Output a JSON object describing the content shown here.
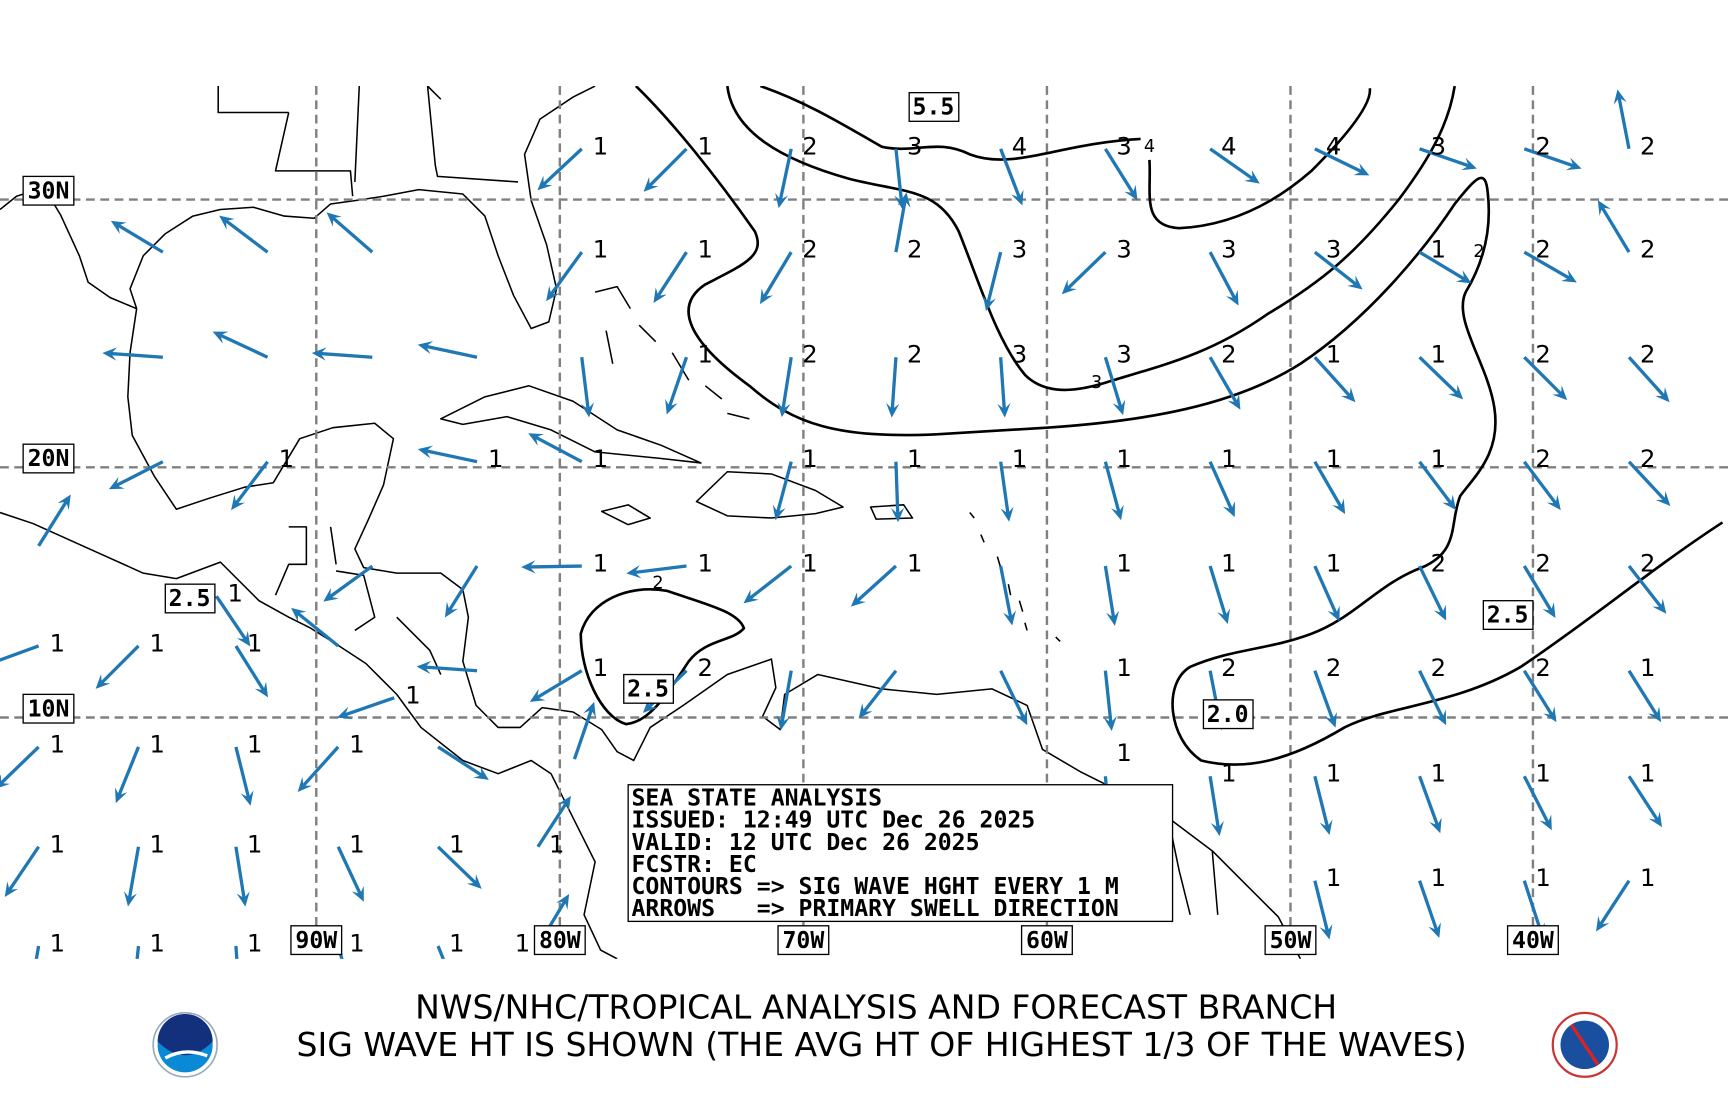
{
  "map": {
    "projection": "mercator",
    "lon_range": [
      -103,
      -32
    ],
    "lat_range": [
      0,
      34
    ],
    "arrow_color": "#1f77b4",
    "lat_labels": [
      {
        "lat": 30,
        "text": "30N"
      },
      {
        "lat": 20,
        "text": "20N"
      },
      {
        "lat": 10,
        "text": "10N"
      }
    ],
    "lon_labels": [
      {
        "lon": -90,
        "text": "90W"
      },
      {
        "lon": -80,
        "text": "80W"
      },
      {
        "lon": -70,
        "text": "70W"
      },
      {
        "lon": -60,
        "text": "60W"
      },
      {
        "lon": -50,
        "text": "50W"
      },
      {
        "lon": -40,
        "text": "40W"
      }
    ],
    "contour_box_labels": [
      "5.5",
      "2.5",
      "2.5",
      "2.0",
      "2.5"
    ],
    "contour_inline_labels": [
      "4",
      "2",
      "3",
      "2"
    ],
    "arrows": [
      {
        "lon": -79.1,
        "lat": 31.8,
        "hs": 1,
        "dir": 227
      },
      {
        "lon": -74.8,
        "lat": 31.8,
        "hs": 1,
        "dir": 225
      },
      {
        "lon": -70.5,
        "lat": 31.8,
        "hs": 2,
        "dir": 192
      },
      {
        "lon": -66.2,
        "lat": 31.8,
        "hs": 3,
        "dir": 174
      },
      {
        "lon": -61.9,
        "lat": 31.8,
        "hs": 4,
        "dir": 159
      },
      {
        "lon": -57.6,
        "lat": 31.8,
        "hs": 3,
        "dir": 148
      },
      {
        "lon": -53.3,
        "lat": 31.8,
        "hs": 4,
        "dir": 125
      },
      {
        "lon": -49.0,
        "lat": 31.8,
        "hs": 4,
        "dir": 116
      },
      {
        "lon": -44.7,
        "lat": 31.8,
        "hs": 3,
        "dir": 109
      },
      {
        "lon": -40.4,
        "lat": 31.8,
        "hs": 2,
        "dir": 109
      },
      {
        "lon": -36.1,
        "lat": 31.8,
        "hs": 2,
        "dir": 349
      },
      {
        "lon": -96.3,
        "lat": 28.1,
        "hs": null,
        "dir": 301
      },
      {
        "lon": -92.0,
        "lat": 28.1,
        "hs": null,
        "dir": 307
      },
      {
        "lon": -87.7,
        "lat": 28.1,
        "hs": null,
        "dir": 311
      },
      {
        "lon": -79.1,
        "lat": 28.1,
        "hs": 1,
        "dir": 216
      },
      {
        "lon": -74.8,
        "lat": 28.1,
        "hs": 1,
        "dir": 213
      },
      {
        "lon": -70.5,
        "lat": 28.1,
        "hs": 2,
        "dir": 211
      },
      {
        "lon": -66.2,
        "lat": 28.1,
        "hs": 2,
        "dir": 10
      },
      {
        "lon": -61.9,
        "lat": 28.1,
        "hs": 3,
        "dir": 194
      },
      {
        "lon": -57.6,
        "lat": 28.1,
        "hs": 3,
        "dir": 226
      },
      {
        "lon": -53.3,
        "lat": 28.1,
        "hs": 3,
        "dir": 152
      },
      {
        "lon": -49.0,
        "lat": 28.1,
        "hs": 3,
        "dir": 128
      },
      {
        "lon": -44.7,
        "lat": 28.1,
        "hs": 1,
        "dir": 121
      },
      {
        "lon": -40.4,
        "lat": 28.1,
        "hs": 2,
        "dir": 120
      },
      {
        "lon": -36.1,
        "lat": 28.1,
        "hs": 2,
        "dir": 329
      },
      {
        "lon": -96.3,
        "lat": 24.2,
        "hs": null,
        "dir": 274
      },
      {
        "lon": -92.0,
        "lat": 24.2,
        "hs": null,
        "dir": 295
      },
      {
        "lon": -87.7,
        "lat": 24.2,
        "hs": null,
        "dir": 274
      },
      {
        "lon": -83.4,
        "lat": 24.2,
        "hs": null,
        "dir": 282
      },
      {
        "lon": -79.1,
        "lat": 24.2,
        "hs": null,
        "dir": 173
      },
      {
        "lon": -74.8,
        "lat": 24.2,
        "hs": 1,
        "dir": 199
      },
      {
        "lon": -70.5,
        "lat": 24.2,
        "hs": 2,
        "dir": 189
      },
      {
        "lon": -66.2,
        "lat": 24.2,
        "hs": 2,
        "dir": 184
      },
      {
        "lon": -61.9,
        "lat": 24.2,
        "hs": 3,
        "dir": 176
      },
      {
        "lon": -57.6,
        "lat": 24.2,
        "hs": 3,
        "dir": 163
      },
      {
        "lon": -53.3,
        "lat": 24.2,
        "hs": 2,
        "dir": 150
      },
      {
        "lon": -49.0,
        "lat": 24.2,
        "hs": 1,
        "dir": 138
      },
      {
        "lon": -44.7,
        "lat": 24.2,
        "hs": 1,
        "dir": 134
      },
      {
        "lon": -40.4,
        "lat": 24.2,
        "hs": 2,
        "dir": 135
      },
      {
        "lon": -36.1,
        "lat": 24.2,
        "hs": 2,
        "dir": 138
      },
      {
        "lon": -96.3,
        "lat": 20.2,
        "hs": null,
        "dir": 243
      },
      {
        "lon": -92.0,
        "lat": 20.2,
        "hs": 1,
        "dir": 217
      },
      {
        "lon": -83.4,
        "lat": 20.2,
        "hs": 1,
        "dir": 282
      },
      {
        "lon": -79.1,
        "lat": 20.2,
        "hs": 1,
        "dir": 298
      },
      {
        "lon": -70.5,
        "lat": 20.2,
        "hs": 1,
        "dir": 195
      },
      {
        "lon": -66.2,
        "lat": 20.2,
        "hs": 1,
        "dir": 178
      },
      {
        "lon": -61.9,
        "lat": 20.2,
        "hs": 1,
        "dir": 172
      },
      {
        "lon": -57.6,
        "lat": 20.2,
        "hs": 1,
        "dir": 165
      },
      {
        "lon": -53.3,
        "lat": 20.2,
        "hs": 1,
        "dir": 156
      },
      {
        "lon": -49.0,
        "lat": 20.2,
        "hs": 1,
        "dir": 150
      },
      {
        "lon": -44.7,
        "lat": 20.2,
        "hs": 1,
        "dir": 143
      },
      {
        "lon": -40.4,
        "lat": 20.2,
        "hs": 2,
        "dir": 143
      },
      {
        "lon": -36.1,
        "lat": 20.2,
        "hs": 2,
        "dir": 137
      },
      {
        "lon": -87.7,
        "lat": 16.1,
        "hs": null,
        "dir": 234
      },
      {
        "lon": -83.4,
        "lat": 16.1,
        "hs": null,
        "dir": 212
      },
      {
        "lon": -79.1,
        "lat": 16.1,
        "hs": 1,
        "dir": 269
      },
      {
        "lon": -74.8,
        "lat": 16.1,
        "hs": 1,
        "dir": 263
      },
      {
        "lon": -70.5,
        "lat": 16.1,
        "hs": 1,
        "dir": 232
      },
      {
        "lon": -66.2,
        "lat": 16.1,
        "hs": 1,
        "dir": 228
      },
      {
        "lon": -61.9,
        "lat": 16.1,
        "hs": null,
        "dir": 169
      },
      {
        "lon": -57.6,
        "lat": 16.1,
        "hs": 1,
        "dir": 171
      },
      {
        "lon": -53.3,
        "lat": 16.1,
        "hs": 1,
        "dir": 163
      },
      {
        "lon": -49.0,
        "lat": 16.1,
        "hs": 1,
        "dir": 156
      },
      {
        "lon": -44.7,
        "lat": 16.1,
        "hs": 2,
        "dir": 154
      },
      {
        "lon": -40.4,
        "lat": 16.1,
        "hs": 2,
        "dir": 149
      },
      {
        "lon": -36.1,
        "lat": 16.1,
        "hs": 2,
        "dir": 142
      },
      {
        "lon": -83.4,
        "lat": 11.9,
        "hs": null,
        "dir": 274
      },
      {
        "lon": -79.1,
        "lat": 11.9,
        "hs": 1,
        "dir": 239
      },
      {
        "lon": -74.8,
        "lat": 11.9,
        "hs": 2,
        "dir": 226
      },
      {
        "lon": -70.5,
        "lat": 11.9,
        "hs": null,
        "dir": 190
      },
      {
        "lon": -66.2,
        "lat": 11.9,
        "hs": null,
        "dir": 218
      },
      {
        "lon": -61.9,
        "lat": 11.9,
        "hs": null,
        "dir": 154
      },
      {
        "lon": -57.6,
        "lat": 11.9,
        "hs": 1,
        "dir": 174
      },
      {
        "lon": -53.3,
        "lat": 11.9,
        "hs": 2,
        "dir": 169
      },
      {
        "lon": -49.0,
        "lat": 11.9,
        "hs": 2,
        "dir": 160
      },
      {
        "lon": -44.7,
        "lat": 11.9,
        "hs": 2,
        "dir": 154
      },
      {
        "lon": -40.4,
        "lat": 11.9,
        "hs": 2,
        "dir": 148
      },
      {
        "lon": -36.1,
        "lat": 11.9,
        "hs": 1,
        "dir": 148
      },
      {
        "lon": -57.6,
        "lat": 7.6,
        "hs": 1,
        "dir": 175
      },
      {
        "lon": -53.3,
        "lat": 7.6,
        "hs": 1,
        "dir": 171
      },
      {
        "lon": -49.0,
        "lat": 7.6,
        "hs": 1,
        "dir": 166
      },
      {
        "lon": -44.7,
        "lat": 7.6,
        "hs": 1,
        "dir": 160
      },
      {
        "lon": -40.4,
        "lat": 7.6,
        "hs": 1,
        "dir": 153
      },
      {
        "lon": -36.1,
        "lat": 7.6,
        "hs": 1,
        "dir": 147
      },
      {
        "lon": -49.0,
        "lat": 3.3,
        "hs": 1,
        "dir": 166
      },
      {
        "lon": -44.7,
        "lat": 3.3,
        "hs": 1,
        "dir": 161
      },
      {
        "lon": -40.4,
        "lat": 3.3,
        "hs": 1,
        "dir": 162
      },
      {
        "lon": -36.1,
        "lat": 3.3,
        "hs": 1,
        "dir": 213
      },
      {
        "lon": -101.4,
        "lat": 16.9,
        "hs": null,
        "dir": 32
      },
      {
        "lon": -94.1,
        "lat": 14.9,
        "hs": 1,
        "dir": 146
      },
      {
        "lon": -89.1,
        "lat": 12.9,
        "hs": null,
        "dir": 309
      },
      {
        "lon": -86.8,
        "lat": 10.8,
        "hs": 1,
        "dir": 251
      },
      {
        "lon": -101.4,
        "lat": 12.9,
        "hs": 1,
        "dir": 250
      },
      {
        "lon": -97.3,
        "lat": 12.9,
        "hs": 1,
        "dir": 225
      },
      {
        "lon": -93.3,
        "lat": 12.9,
        "hs": 1,
        "dir": 148
      },
      {
        "lon": -101.4,
        "lat": 8.8,
        "hs": 1,
        "dir": 226
      },
      {
        "lon": -97.3,
        "lat": 8.8,
        "hs": 1,
        "dir": 202
      },
      {
        "lon": -93.3,
        "lat": 8.8,
        "hs": 1,
        "dir": 166
      },
      {
        "lon": -89.1,
        "lat": 8.8,
        "hs": 1,
        "dir": 222
      },
      {
        "lon": -85.0,
        "lat": 8.8,
        "hs": null,
        "dir": 123
      },
      {
        "lon": -101.4,
        "lat": 4.7,
        "hs": 1,
        "dir": 214
      },
      {
        "lon": -97.3,
        "lat": 4.7,
        "hs": 1,
        "dir": 190
      },
      {
        "lon": -93.3,
        "lat": 4.7,
        "hs": 1,
        "dir": 171
      },
      {
        "lon": -89.1,
        "lat": 4.7,
        "hs": 1,
        "dir": 155
      },
      {
        "lon": -85.0,
        "lat": 4.7,
        "hs": 1,
        "dir": 134
      },
      {
        "lon": -80.9,
        "lat": 4.7,
        "hs": 1,
        "dir": 33
      },
      {
        "lon": -101.4,
        "lat": 0.6,
        "hs": 1,
        "dir": 190
      },
      {
        "lon": -97.3,
        "lat": 0.6,
        "hs": 1,
        "dir": 186
      },
      {
        "lon": -93.3,
        "lat": 0.6,
        "hs": 1,
        "dir": 176
      },
      {
        "lon": -89.1,
        "lat": 0.6,
        "hs": 1,
        "dir": 164
      },
      {
        "lon": -85.0,
        "lat": 0.6,
        "hs": 1,
        "dir": 158
      },
      {
        "lon": -80.9,
        "lat": 0.6,
        "hs": 1,
        "dir": 31
      },
      {
        "lon": -79.4,
        "lat": 8.3,
        "hs": null,
        "dir": 19
      }
    ]
  },
  "info_box": {
    "line1": "SEA STATE ANALYSIS",
    "line2": "ISSUED: 12:49 UTC Dec 26 2025",
    "line3": "VALID: 12 UTC Dec 26 2025",
    "line4": "FCSTR: EC",
    "line5": "CONTOURS => SIG WAVE HGHT EVERY 1 M",
    "line6": "ARROWS   => PRIMARY SWELL DIRECTION"
  },
  "footer": {
    "line1": "NWS/NHC/TROPICAL ANALYSIS AND FORECAST BRANCH",
    "line2": "SIG WAVE HT IS SHOWN (THE AVG HT OF HIGHEST 1/3 OF THE WAVES)",
    "left_logo": "NOAA",
    "right_logo": "TAFB"
  }
}
